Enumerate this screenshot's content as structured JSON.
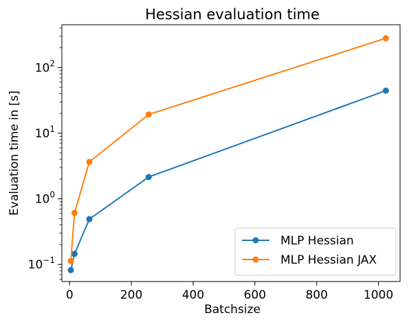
{
  "chart_data": {
    "type": "line",
    "title": "Hessian evaluation time",
    "xlabel": "Batchsize",
    "ylabel": "Evaluation time in [s]",
    "xscale": "linear",
    "yscale": "log",
    "xlim": [
      -25,
      1070
    ],
    "ylim": [
      0.055,
      450
    ],
    "xticks": [
      0,
      200,
      400,
      600,
      800,
      1000
    ],
    "xtick_labels": [
      "0",
      "200",
      "400",
      "600",
      "800",
      "1000"
    ],
    "yticks": [
      0.1,
      1,
      10,
      100
    ],
    "ytick_labels": [
      {
        "base": "10",
        "exp": "−1"
      },
      {
        "base": "10",
        "exp": "0"
      },
      {
        "base": "10",
        "exp": "1"
      },
      {
        "base": "10",
        "exp": "2"
      }
    ],
    "grid": false,
    "legend_position": "lower-right",
    "series": [
      {
        "name": "MLP Hessian",
        "color": "#1f77b4",
        "marker": "circle",
        "x": [
          4,
          16,
          64,
          256,
          1024
        ],
        "y": [
          0.082,
          0.145,
          0.49,
          2.15,
          44.5
        ]
      },
      {
        "name": "MLP Hessian JAX",
        "color": "#ff7f0e",
        "marker": "circle",
        "x": [
          4,
          16,
          64,
          256,
          1024
        ],
        "y": [
          0.113,
          0.61,
          3.65,
          19.3,
          280
        ]
      }
    ]
  }
}
